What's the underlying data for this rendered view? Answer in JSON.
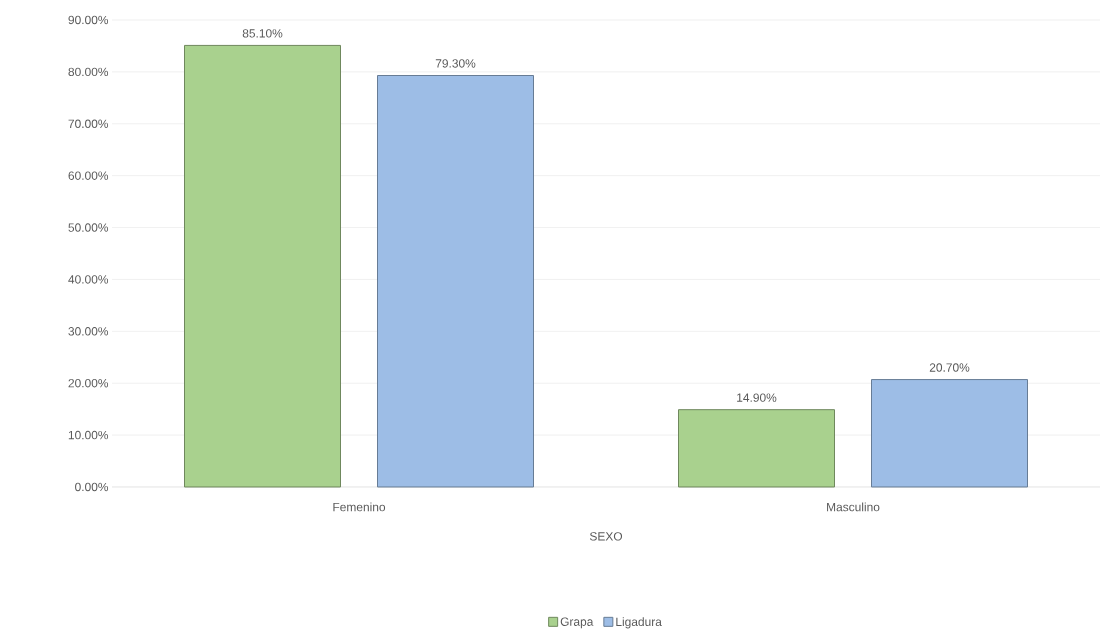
{
  "chart_data": {
    "type": "bar",
    "xlabel": "SEXO",
    "categories": [
      "Femenino",
      "Masculino"
    ],
    "series": [
      {
        "name": "Grapa",
        "color": "#a9d18e",
        "values": [
          85.1,
          14.9
        ],
        "value_labels": [
          "85.10%",
          "14.90%"
        ]
      },
      {
        "name": "Ligadura",
        "color": "#9dbde6",
        "values": [
          79.3,
          20.7
        ],
        "value_labels": [
          "79.30%",
          "20.70%"
        ]
      }
    ],
    "ylim": [
      0,
      90
    ],
    "yticks": [
      {
        "value": 0,
        "label": "0.00%"
      },
      {
        "value": 10,
        "label": "10.00%"
      },
      {
        "value": 20,
        "label": "20.00%"
      },
      {
        "value": 30,
        "label": "30.00%"
      },
      {
        "value": 40,
        "label": "40.00%"
      },
      {
        "value": 50,
        "label": "50.00%"
      },
      {
        "value": 60,
        "label": "60.00%"
      },
      {
        "value": 70,
        "label": "70.00%"
      },
      {
        "value": 80,
        "label": "80.00%"
      },
      {
        "value": 90,
        "label": "90.00%"
      }
    ],
    "grid": "y",
    "legend": "bottom"
  }
}
